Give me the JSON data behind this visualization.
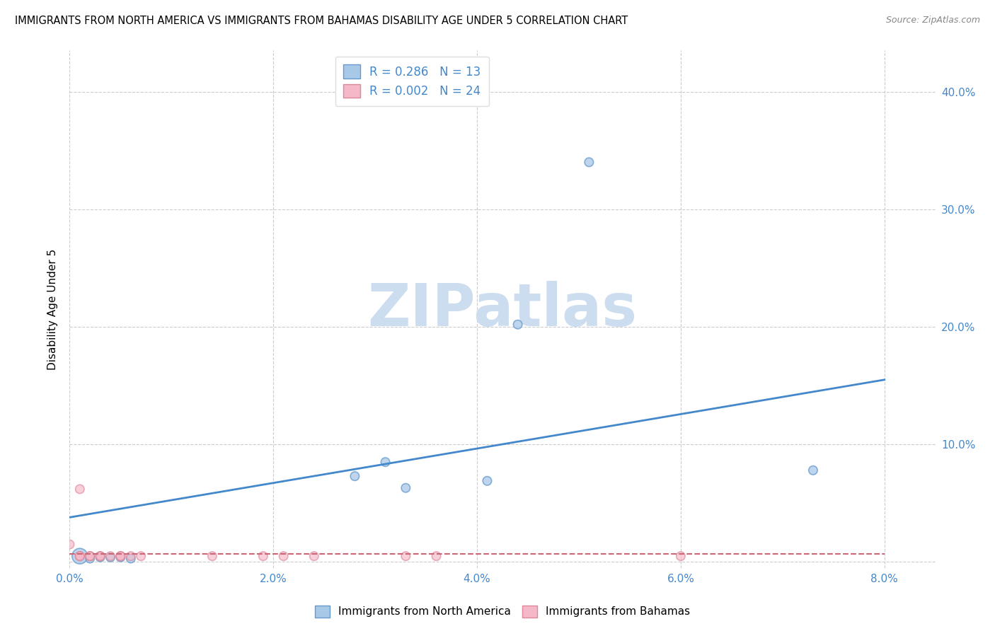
{
  "title": "IMMIGRANTS FROM NORTH AMERICA VS IMMIGRANTS FROM BAHAMAS DISABILITY AGE UNDER 5 CORRELATION CHART",
  "source": "Source: ZipAtlas.com",
  "ylabel": "Disability Age Under 5",
  "xlim": [
    0.0,
    0.085
  ],
  "ylim": [
    -0.005,
    0.435
  ],
  "xticks": [
    0.0,
    0.02,
    0.04,
    0.06,
    0.08
  ],
  "yticks": [
    0.0,
    0.1,
    0.2,
    0.3,
    0.4
  ],
  "xtick_labels": [
    "0.0%",
    "2.0%",
    "4.0%",
    "6.0%",
    "8.0%"
  ],
  "ytick_labels_right": [
    "",
    "10.0%",
    "20.0%",
    "30.0%",
    "40.0%"
  ],
  "blue_color": "#a8c8e8",
  "blue_edge_color": "#6699cc",
  "blue_line_color": "#4488cc",
  "pink_color": "#f4b8c8",
  "pink_edge_color": "#dd8899",
  "pink_line_color": "#cc6677",
  "tick_color": "#4488cc",
  "grid_color": "#cccccc",
  "legend_label_blue": "R = 0.286   N = 13",
  "legend_label_pink": "R = 0.002   N = 24",
  "bottom_legend_blue": "Immigrants from North America",
  "bottom_legend_pink": "Immigrants from Bahamas",
  "north_america_x": [
    0.001,
    0.002,
    0.003,
    0.004,
    0.005,
    0.006,
    0.028,
    0.031,
    0.033,
    0.041,
    0.044,
    0.051,
    0.073
  ],
  "north_america_y": [
    0.005,
    0.003,
    0.004,
    0.004,
    0.004,
    0.003,
    0.073,
    0.085,
    0.063,
    0.069,
    0.202,
    0.34,
    0.078
  ],
  "north_america_sizes": [
    250,
    80,
    80,
    80,
    80,
    80,
    80,
    80,
    80,
    80,
    80,
    80,
    80
  ],
  "bahamas_x": [
    0.0,
    0.001,
    0.001,
    0.001,
    0.001,
    0.002,
    0.002,
    0.002,
    0.003,
    0.003,
    0.003,
    0.004,
    0.005,
    0.005,
    0.005,
    0.006,
    0.007,
    0.014,
    0.019,
    0.021,
    0.024,
    0.033,
    0.036,
    0.06
  ],
  "bahamas_y": [
    0.015,
    0.005,
    0.005,
    0.005,
    0.062,
    0.005,
    0.005,
    0.005,
    0.005,
    0.005,
    0.005,
    0.005,
    0.005,
    0.005,
    0.005,
    0.005,
    0.005,
    0.005,
    0.005,
    0.005,
    0.005,
    0.005,
    0.005,
    0.005
  ],
  "bahamas_sizes": [
    80,
    80,
    80,
    80,
    80,
    80,
    80,
    80,
    80,
    80,
    80,
    80,
    80,
    80,
    80,
    80,
    80,
    80,
    80,
    80,
    80,
    80,
    80,
    80
  ],
  "blue_trend_x0": 0.0,
  "blue_trend_x1": 0.08,
  "blue_trend_y0": 0.038,
  "blue_trend_y1": 0.155,
  "pink_trend_x0": 0.0,
  "pink_trend_x1": 0.08,
  "pink_trend_y0": 0.007,
  "pink_trend_y1": 0.007,
  "watermark_text": "ZIPatlas",
  "watermark_color": "#ccddf0",
  "background_color": "#ffffff"
}
